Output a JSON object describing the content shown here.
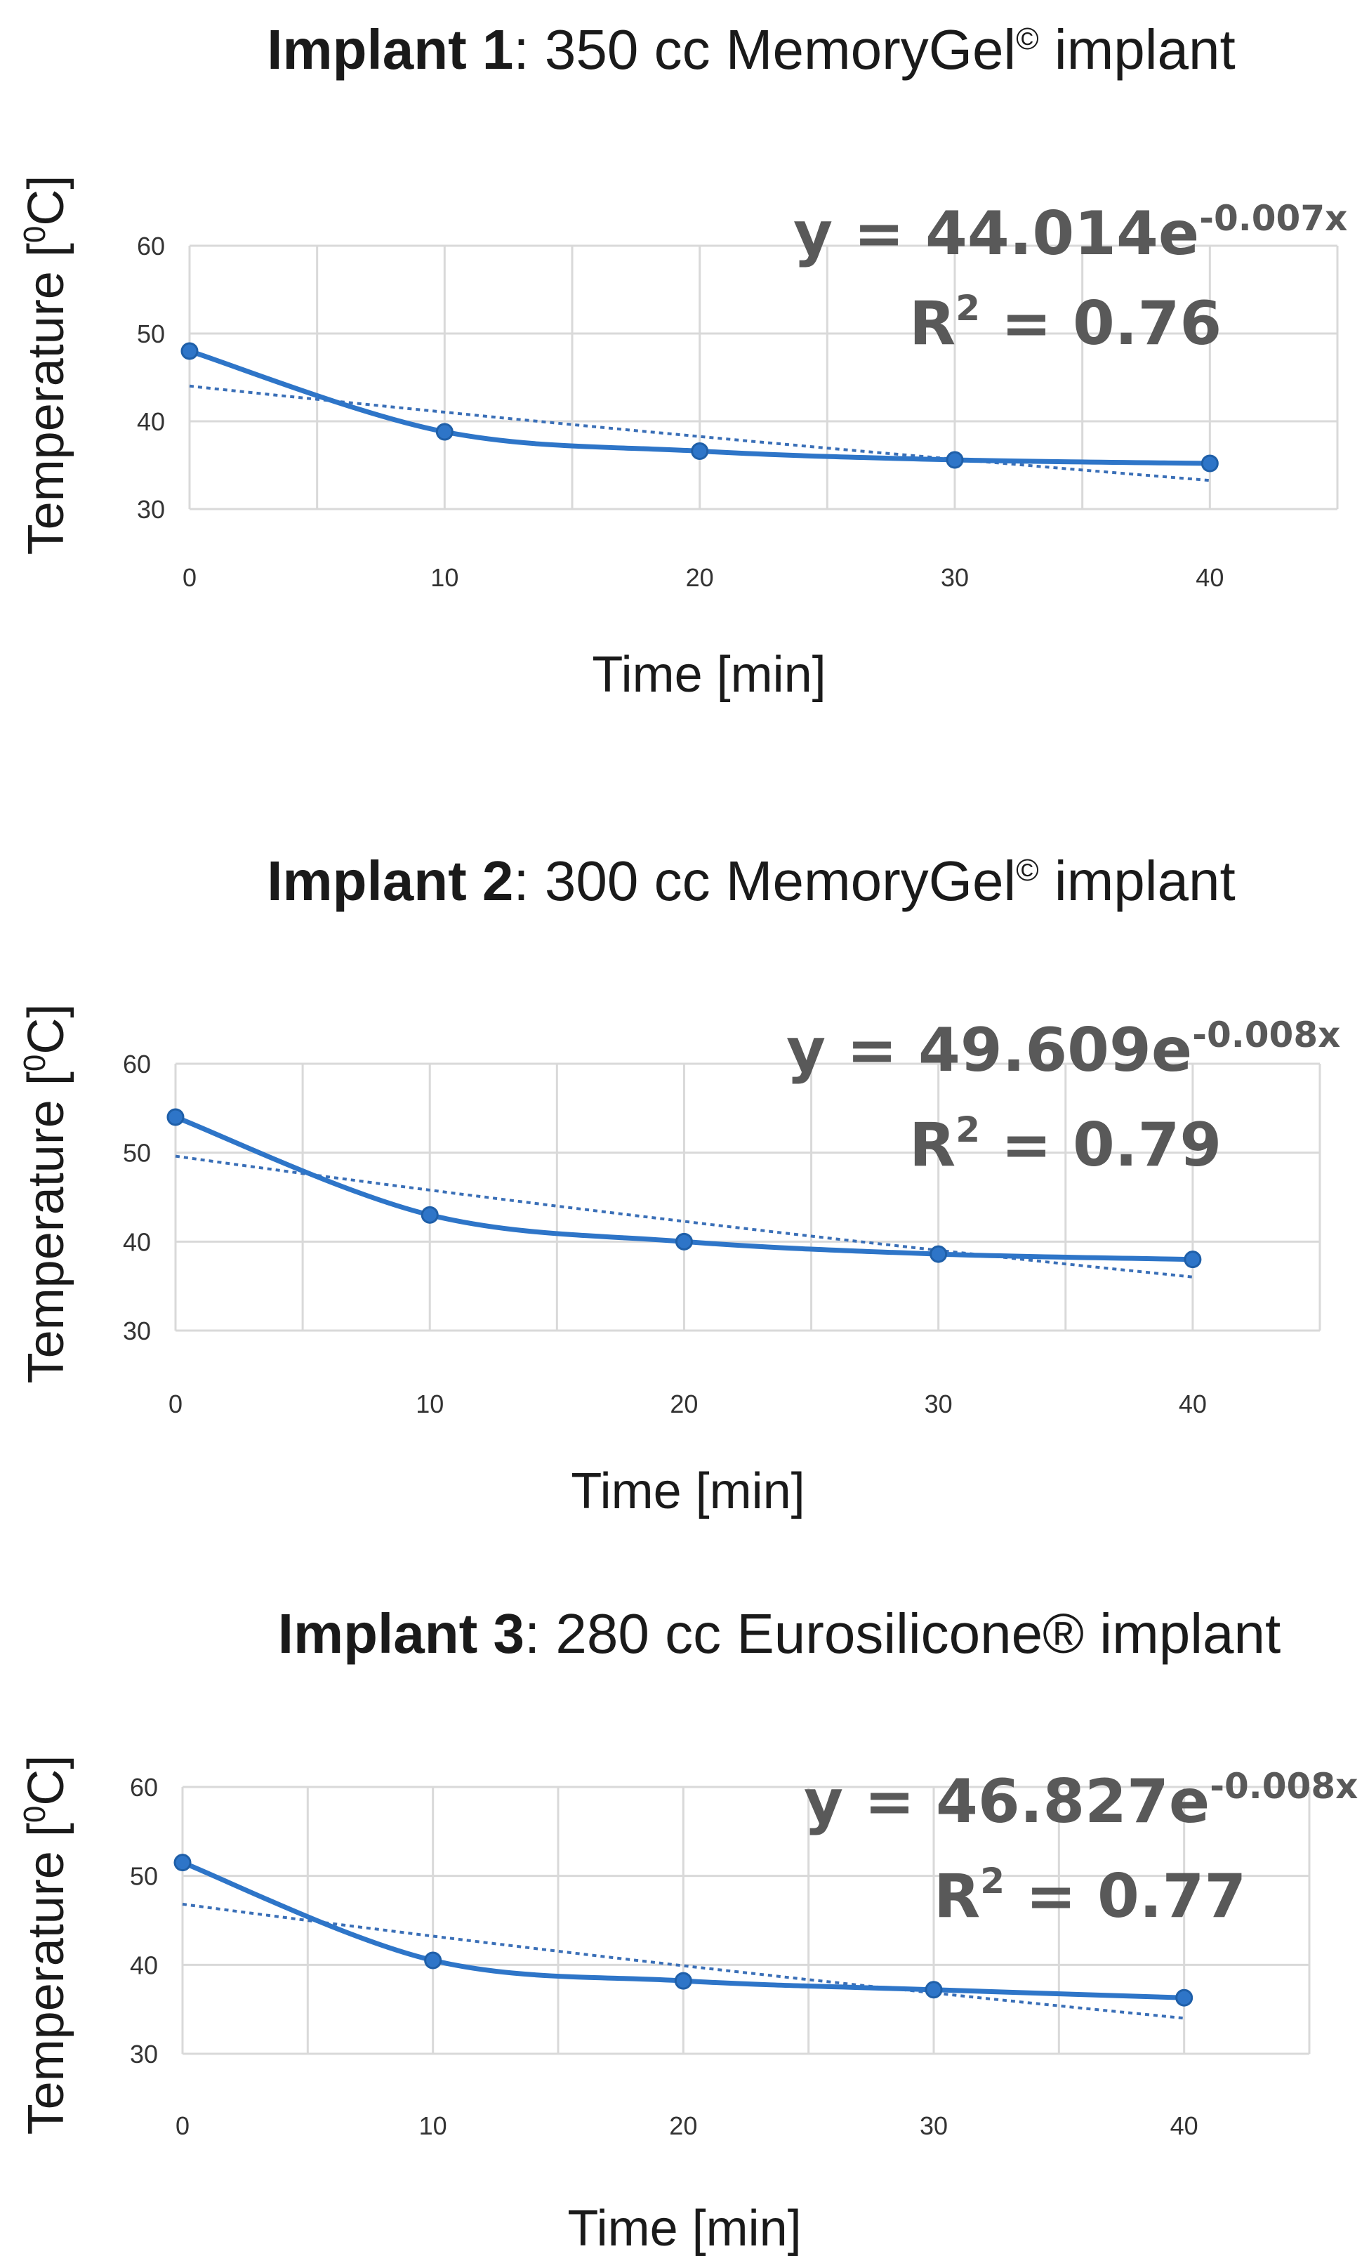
{
  "chart_data": [
    {
      "type": "line",
      "title_bold": "Implant 1",
      "title_rest": ": 350 cc MemoryGel",
      "title_mark": "©",
      "title_tail": " implant",
      "xlabel": "Time [min]",
      "ylabel_main": "Temperature [",
      "ylabel_sup": "0",
      "ylabel_end": "C]",
      "x": [
        0,
        10,
        20,
        30,
        40
      ],
      "values": [
        48,
        38.8,
        36.6,
        35.6,
        35.2
      ],
      "xlim": [
        0,
        45
      ],
      "ylim": [
        30,
        60
      ],
      "yticks": [
        30,
        40,
        50,
        60
      ],
      "xticks": [
        0,
        10,
        20,
        30,
        40
      ],
      "trendline": {
        "type": "exponential",
        "a": 44.014,
        "b": -0.007
      },
      "equation_base": "y = 44.014e",
      "equation_exp": "-0.007x",
      "r2_label": "R",
      "r2_sup": "2",
      "r2_value": " = 0.76"
    },
    {
      "type": "line",
      "title_bold": "Implant 2",
      "title_rest": ": 300 cc MemoryGel",
      "title_mark": "©",
      "title_tail": " implant",
      "xlabel": "Time [min]",
      "ylabel_main": "Temperature [",
      "ylabel_sup": "0",
      "ylabel_end": "C]",
      "x": [
        0,
        10,
        20,
        30,
        40
      ],
      "values": [
        54,
        43,
        40,
        38.6,
        38
      ],
      "xlim": [
        0,
        45
      ],
      "ylim": [
        30,
        60
      ],
      "yticks": [
        30,
        40,
        50,
        60
      ],
      "xticks": [
        0,
        10,
        20,
        30,
        40
      ],
      "trendline": {
        "type": "exponential",
        "a": 49.609,
        "b": -0.008
      },
      "equation_base": "y = 49.609e",
      "equation_exp": "-0.008x",
      "r2_label": "R",
      "r2_sup": "2",
      "r2_value": " = 0.79"
    },
    {
      "type": "line",
      "title_bold": "Implant 3",
      "title_rest": ": 280 cc Eurosilicone",
      "title_mark": "®",
      "title_tail": " implant",
      "xlabel": "Time [min]",
      "ylabel_main": "Temperature [",
      "ylabel_sup": "0",
      "ylabel_end": "C]",
      "x": [
        0,
        10,
        20,
        30,
        40
      ],
      "values": [
        51.5,
        40.5,
        38.2,
        37.2,
        36.3
      ],
      "xlim": [
        0,
        45
      ],
      "ylim": [
        30,
        60
      ],
      "yticks": [
        30,
        40,
        50,
        60
      ],
      "xticks": [
        0,
        10,
        20,
        30,
        40
      ],
      "trendline": {
        "type": "exponential",
        "a": 46.827,
        "b": -0.008
      },
      "equation_base": "y = 46.827e",
      "equation_exp": "-0.008x",
      "r2_label": "R",
      "r2_sup": "2",
      "r2_value": " = 0.77"
    }
  ]
}
